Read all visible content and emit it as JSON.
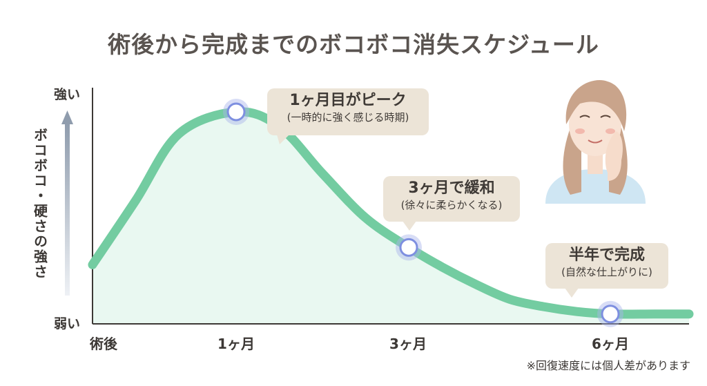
{
  "title": "術後から完成までのボコボコ消失スケジュール",
  "note": "※回復速度には個人差があります",
  "colors": {
    "curve": "#73cca1",
    "fill": "#e9f8f1",
    "marker_ring": "#a9b4ec",
    "marker_stroke": "#7e8fe0",
    "callout_bg": "#ece4d7",
    "axis": "#3c3835",
    "arrow": "#9aa6b6"
  },
  "chart_data": {
    "type": "line",
    "y_axis_label": "ボコボコ・硬さの強さ",
    "y_ticks": {
      "top": "強い",
      "bottom": "弱い"
    },
    "x_ticks": [
      {
        "label": "術後",
        "x": 0
      },
      {
        "label": "1ヶ月",
        "x": 1
      },
      {
        "label": "3ヶ月",
        "x": 3
      },
      {
        "label": "6ヶ月",
        "x": 6
      }
    ],
    "xlim": [
      0,
      6.9
    ],
    "ylim": [
      0,
      1
    ],
    "series": [
      {
        "points": [
          {
            "x": 0,
            "y": 0.24
          },
          {
            "x": 0.3,
            "y": 0.5
          },
          {
            "x": 0.6,
            "y": 0.77
          },
          {
            "x": 1,
            "y": 0.86
          },
          {
            "x": 1.5,
            "y": 0.8
          },
          {
            "x": 2,
            "y": 0.61
          },
          {
            "x": 2.5,
            "y": 0.43
          },
          {
            "x": 3,
            "y": 0.31
          },
          {
            "x": 3.5,
            "y": 0.23
          },
          {
            "x": 4,
            "y": 0.16
          },
          {
            "x": 4.5,
            "y": 0.1
          },
          {
            "x": 5,
            "y": 0.07
          },
          {
            "x": 5.5,
            "y": 0.05
          },
          {
            "x": 6,
            "y": 0.04
          },
          {
            "x": 6.5,
            "y": 0.04
          },
          {
            "x": 6.9,
            "y": 0.04
          }
        ]
      }
    ],
    "markers": [
      {
        "x": 1,
        "y": 0.86
      },
      {
        "x": 3,
        "y": 0.31
      },
      {
        "x": 6,
        "y": 0.04
      }
    ],
    "annotations": [
      {
        "title": "1ヶ月目がピーク",
        "subtitle": "(一時的に強く感じる時期)"
      },
      {
        "title": "3ヶ月で緩和",
        "subtitle": "(徐々に柔らかくなる)"
      },
      {
        "title": "半年で完成",
        "subtitle": "(自然な仕上がりに)"
      }
    ]
  }
}
